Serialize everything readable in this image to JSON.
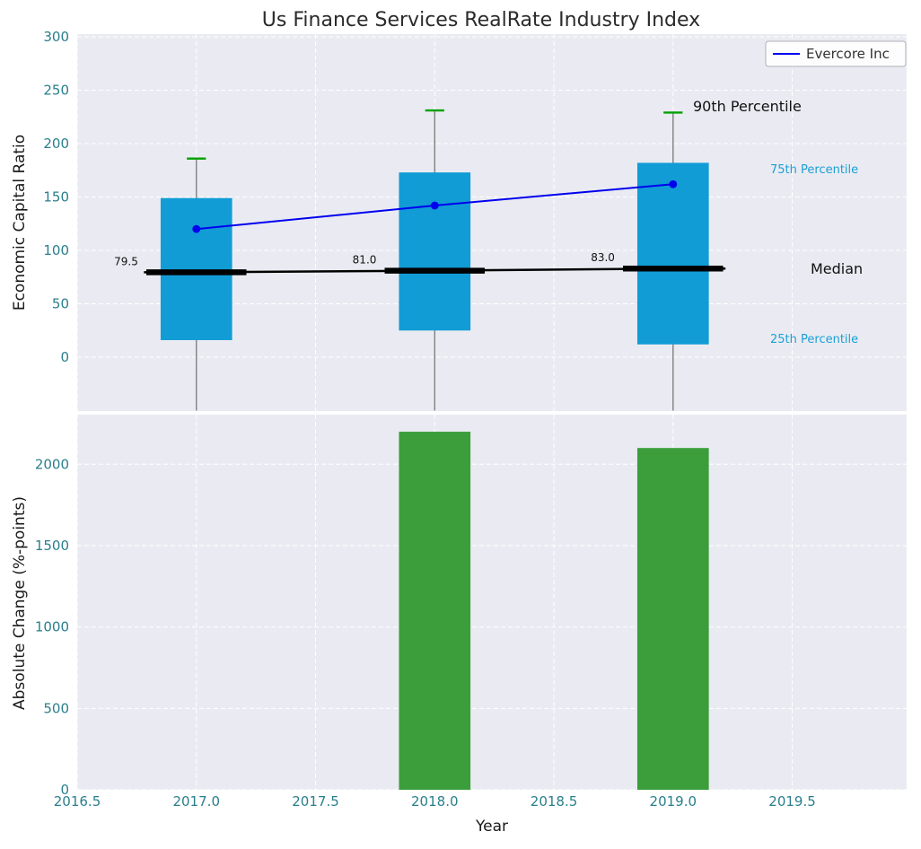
{
  "chart_data": [
    {
      "type": "box",
      "title": "Us Finance Services RealRate Industry Index",
      "ylabel": "Economic Capital Ratio",
      "xlim": [
        2016.5,
        2019.98
      ],
      "ylim": [
        -50.4,
        302.5
      ],
      "yticks": [
        0,
        50,
        100,
        150,
        200,
        250,
        300
      ],
      "grid": true,
      "legend": {
        "label": "Evercore Inc",
        "line_color": "#0000ee",
        "position": "upper right"
      },
      "boxes": [
        {
          "x": 2017,
          "q1": 16,
          "q3": 149,
          "median": 79.5,
          "p90": 186,
          "whisker_low": -50,
          "median_label": "79.5"
        },
        {
          "x": 2018,
          "q1": 25,
          "q3": 173,
          "median": 81.0,
          "p90": 231,
          "whisker_low": -50,
          "median_label": "81.0"
        },
        {
          "x": 2019,
          "q1": 12,
          "q3": 182,
          "median": 83.0,
          "p90": 229,
          "whisker_low": -50,
          "median_label": "83.0"
        }
      ],
      "series": [
        {
          "name": "Evercore Inc",
          "x": [
            2017,
            2018,
            2019
          ],
          "values": [
            120,
            142,
            162
          ],
          "color": "#0000ee",
          "marker": "circle"
        }
      ],
      "annotations": [
        {
          "text": "90th Percentile",
          "color": "#111111"
        },
        {
          "text": "75th Percentile",
          "color": "#1b9fd4"
        },
        {
          "text": "Median",
          "color": "#111111"
        },
        {
          "text": "25th Percentile",
          "color": "#1b9fd4"
        }
      ],
      "colors": {
        "box": "#119cd6",
        "p90_cap": "#00a000",
        "median_line": "#000000",
        "whisker": "#808080",
        "axes_background": "#eaebf2",
        "grid": "#ffffff",
        "tick_label": "#2a7f8c"
      }
    },
    {
      "type": "bar",
      "ylabel": "Absolute Change (%-points)",
      "xlabel": "Year",
      "categories": [
        2017,
        2018,
        2019
      ],
      "values": [
        0,
        2200,
        2100
      ],
      "bar_color": "#3b9e3b",
      "bar_width": 0.3,
      "xticks": [
        "2016.5",
        "2017.0",
        "2017.5",
        "2018.0",
        "2018.5",
        "2019.0",
        "2019.5"
      ],
      "yticks": [
        0,
        500,
        1000,
        1500,
        2000
      ],
      "xlim": [
        2016.5,
        2019.98
      ],
      "ylim": [
        0,
        2305
      ],
      "grid": true
    }
  ]
}
